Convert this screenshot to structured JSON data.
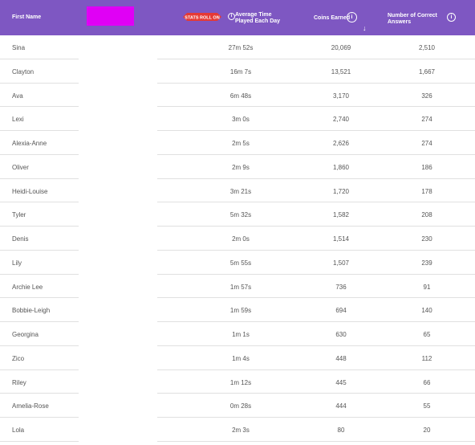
{
  "header": {
    "first_name": "First Name",
    "badge_text": "STATS ROLL ON",
    "avg_time_line1": "Average Time",
    "avg_time_line2": "Played Each Day",
    "coins": "Coins Earned",
    "correct_line1": "Number of Correct",
    "correct_line2": "Answers",
    "info_glyph": "i",
    "sort_glyph": "↓"
  },
  "colors": {
    "header_bg": "#7e57c2",
    "redacted": "#e000f5",
    "badge": "#e53935"
  },
  "rows": [
    {
      "name": "Sina",
      "time": "27m 52s",
      "coins": "20,069",
      "correct": "2,510"
    },
    {
      "name": "Clayton",
      "time": "16m 7s",
      "coins": "13,521",
      "correct": "1,667"
    },
    {
      "name": "Ava",
      "time": "6m 48s",
      "coins": "3,170",
      "correct": "326"
    },
    {
      "name": "Lexi",
      "time": "3m 0s",
      "coins": "2,740",
      "correct": "274"
    },
    {
      "name": "Alexia-Anne",
      "time": "2m 5s",
      "coins": "2,626",
      "correct": "274"
    },
    {
      "name": "Oliver",
      "time": "2m 9s",
      "coins": "1,860",
      "correct": "186"
    },
    {
      "name": "Heidi-Louise",
      "time": "3m 21s",
      "coins": "1,720",
      "correct": "178"
    },
    {
      "name": "Tyler",
      "time": "5m 32s",
      "coins": "1,582",
      "correct": "208"
    },
    {
      "name": "Denis",
      "time": "2m 0s",
      "coins": "1,514",
      "correct": "230"
    },
    {
      "name": "Lily",
      "time": "5m 55s",
      "coins": "1,507",
      "correct": "239"
    },
    {
      "name": "Archie Lee",
      "time": "1m 57s",
      "coins": "736",
      "correct": "91"
    },
    {
      "name": "Bobbie-Leigh",
      "time": "1m 59s",
      "coins": "694",
      "correct": "140"
    },
    {
      "name": "Georgina",
      "time": "1m 1s",
      "coins": "630",
      "correct": "65"
    },
    {
      "name": "Zico",
      "time": "1m 4s",
      "coins": "448",
      "correct": "112"
    },
    {
      "name": "Riley",
      "time": "1m 12s",
      "coins": "445",
      "correct": "66"
    },
    {
      "name": "Amelia-Rose",
      "time": "0m 28s",
      "coins": "444",
      "correct": "55"
    },
    {
      "name": "Lola",
      "time": "2m 3s",
      "coins": "80",
      "correct": "20"
    }
  ]
}
